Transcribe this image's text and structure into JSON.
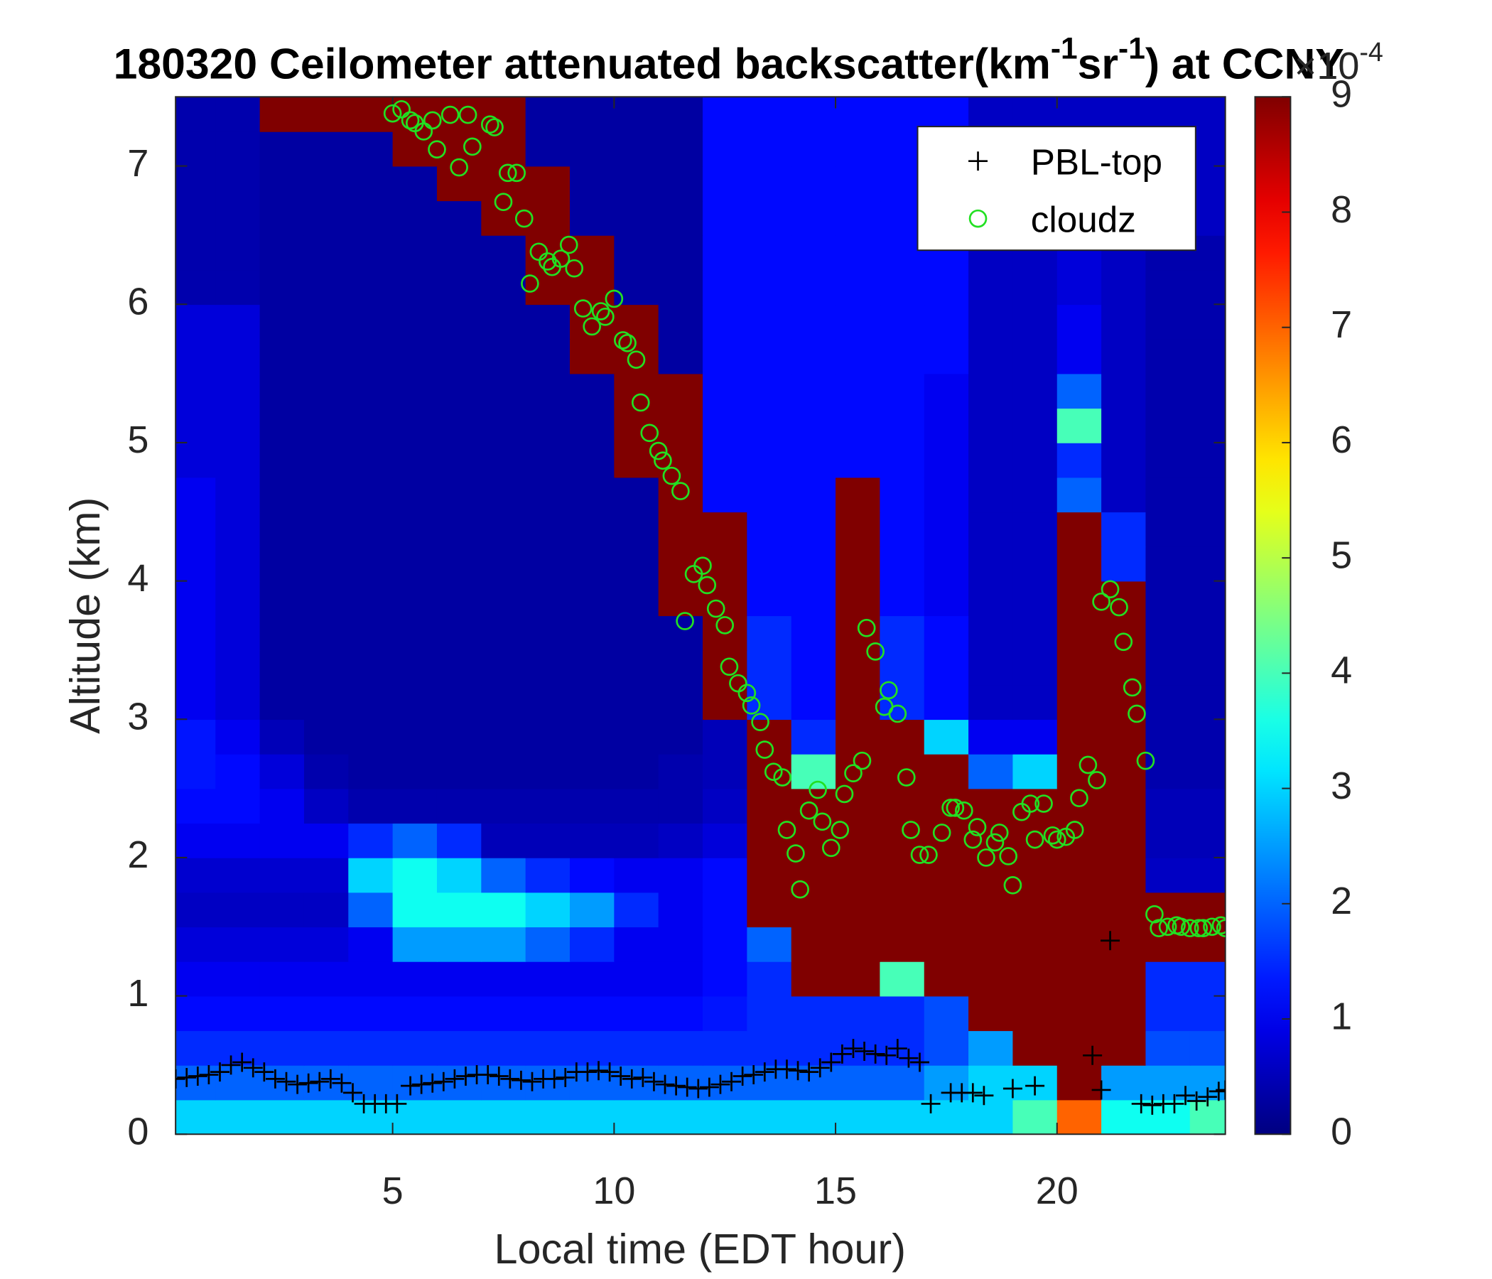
{
  "chart_data": {
    "type": "heatmap",
    "title": [
      "180320 Ceilometer attenuated backscatter(km",
      "-1",
      "sr",
      "-1",
      ") at CCNY"
    ],
    "xlabel": "Local time (EDT hour)",
    "ylabel": "Altitude (km)",
    "colormap": "jet",
    "colorbar_label": [
      "×10",
      "-4"
    ],
    "clim": [
      0,
      9
    ],
    "cticks": [
      0,
      1,
      2,
      3,
      4,
      5,
      6,
      7,
      8,
      9
    ],
    "xlim": [
      0.1,
      23.8
    ],
    "ylim": [
      0,
      7.5
    ],
    "xticks": [
      5,
      10,
      15,
      20
    ],
    "yticks": [
      0,
      1,
      2,
      3,
      4,
      5,
      6,
      7
    ],
    "legend": "upper right",
    "x": [
      0.5,
      1.5,
      2.5,
      3.5,
      4.5,
      5.5,
      6.5,
      7.5,
      8.5,
      9.5,
      10.5,
      11.5,
      12.5,
      13.5,
      14.5,
      15.5,
      16.5,
      17.5,
      18.5,
      19.5,
      20.5,
      21.5,
      22.5,
      23.5
    ],
    "y": [
      0.125,
      0.375,
      0.625,
      0.875,
      1.125,
      1.375,
      1.625,
      1.875,
      2.125,
      2.375,
      2.625,
      2.875,
      3.125,
      3.375,
      3.625,
      3.875,
      4.125,
      4.375,
      4.625,
      4.875,
      5.125,
      5.375,
      5.625,
      5.875,
      6.125,
      6.375,
      6.625,
      6.875,
      7.125,
      7.375
    ],
    "z": [
      [
        3,
        3,
        3,
        3,
        3,
        3,
        3,
        3,
        3,
        3,
        3,
        3,
        3,
        3,
        3,
        3,
        3,
        3,
        3,
        4,
        7,
        3.5,
        3.5,
        4
      ],
      [
        2,
        2,
        2,
        2,
        2,
        2,
        2,
        2,
        2,
        2,
        2,
        2,
        2,
        2,
        2,
        2,
        2,
        2.5,
        3,
        3,
        9,
        2.5,
        2.5,
        2.5
      ],
      [
        1.5,
        1.5,
        1.5,
        1.5,
        1.5,
        1.5,
        1.5,
        1.5,
        1.5,
        1.5,
        1.5,
        1.5,
        1.5,
        1.5,
        1.5,
        1.5,
        1.5,
        1.8,
        2.5,
        9,
        9,
        9,
        1.8,
        1.8
      ],
      [
        1.2,
        1.2,
        1.2,
        1.2,
        1.2,
        1.2,
        1.2,
        1.2,
        1.2,
        1.2,
        1.2,
        1.2,
        1.3,
        1.5,
        1.5,
        1.5,
        1.5,
        1.8,
        9,
        9,
        9,
        9,
        1.5,
        1.5
      ],
      [
        1,
        1,
        1,
        1,
        1,
        1,
        1,
        1,
        1,
        1,
        1,
        1,
        1.2,
        1.5,
        9,
        9,
        4,
        9,
        9,
        9,
        9,
        9,
        1.5,
        1.5
      ],
      [
        0.8,
        0.8,
        0.8,
        0.8,
        1,
        2.5,
        2.5,
        2.5,
        2,
        1.5,
        1,
        1,
        1.2,
        2,
        9,
        9,
        9,
        9,
        9,
        9,
        9,
        9,
        9,
        9
      ],
      [
        0.6,
        0.6,
        0.6,
        0.6,
        2,
        3.5,
        3.5,
        3.5,
        3,
        2.5,
        1.5,
        1,
        1.2,
        9,
        9,
        9,
        9,
        9,
        9,
        9,
        9,
        9,
        9,
        9
      ],
      [
        0.7,
        0.7,
        0.7,
        0.7,
        3,
        3.5,
        3,
        2,
        1.5,
        1.2,
        1,
        1,
        1.2,
        9,
        9,
        9,
        9,
        9,
        9,
        9,
        9,
        9,
        0.6,
        0.6
      ],
      [
        1,
        1,
        1,
        1,
        1.5,
        2,
        1.5,
        0.5,
        0.5,
        0.5,
        0.5,
        0.6,
        0.8,
        9,
        9,
        9,
        9,
        9,
        9,
        9,
        9,
        9,
        0.5,
        0.5
      ],
      [
        1.2,
        1.2,
        1,
        0.6,
        0.4,
        0.4,
        0.4,
        0.4,
        0.4,
        0.4,
        0.4,
        0.4,
        0.6,
        9,
        9,
        9,
        9,
        9,
        9,
        9,
        9,
        9,
        0.5,
        0.5
      ],
      [
        1.3,
        1.2,
        0.8,
        0.4,
        0.3,
        0.3,
        0.3,
        0.3,
        0.3,
        0.3,
        0.3,
        0.4,
        0.5,
        9,
        4,
        9,
        9,
        9,
        2,
        3,
        9,
        9,
        0.4,
        0.4
      ],
      [
        1.3,
        1,
        0.5,
        0.3,
        0.3,
        0.3,
        0.3,
        0.3,
        0.3,
        0.3,
        0.3,
        0.3,
        0.5,
        9,
        1.5,
        9,
        9,
        3,
        1,
        1,
        9,
        9,
        0.4,
        0.4
      ],
      [
        1,
        0.8,
        0.3,
        0.3,
        0.3,
        0.3,
        0.3,
        0.3,
        0.3,
        0.3,
        0.3,
        0.3,
        9,
        1.5,
        1.2,
        9,
        1.5,
        1.2,
        0.6,
        0.6,
        9,
        9,
        0.4,
        0.4
      ],
      [
        1,
        0.8,
        0.3,
        0.3,
        0.3,
        0.3,
        0.3,
        0.3,
        0.3,
        0.3,
        0.3,
        0.3,
        9,
        1.5,
        1.2,
        9,
        1.5,
        1.2,
        0.6,
        0.6,
        9,
        9,
        0.4,
        0.4
      ],
      [
        1,
        0.8,
        0.3,
        0.3,
        0.3,
        0.3,
        0.3,
        0.3,
        0.3,
        0.3,
        0.3,
        0.3,
        9,
        1.5,
        1.2,
        9,
        1.5,
        1.2,
        0.6,
        0.6,
        9,
        9,
        0.4,
        0.4
      ],
      [
        1,
        0.8,
        0.3,
        0.3,
        0.3,
        0.3,
        0.3,
        0.3,
        0.3,
        0.3,
        0.3,
        9,
        9,
        1.2,
        1.2,
        9,
        1.2,
        1,
        0.6,
        0.6,
        9,
        9,
        0.4,
        0.4
      ],
      [
        1,
        0.8,
        0.3,
        0.3,
        0.3,
        0.3,
        0.3,
        0.3,
        0.3,
        0.3,
        0.3,
        9,
        9,
        1.2,
        1.2,
        9,
        1.2,
        1,
        0.6,
        0.6,
        9,
        1.5,
        0.4,
        0.4
      ],
      [
        1,
        0.8,
        0.3,
        0.3,
        0.3,
        0.3,
        0.3,
        0.3,
        0.3,
        0.3,
        0.3,
        9,
        9,
        1.2,
        1.2,
        9,
        1.2,
        1,
        0.6,
        0.6,
        9,
        1.5,
        0.4,
        0.4
      ],
      [
        1,
        0.8,
        0.3,
        0.3,
        0.3,
        0.3,
        0.3,
        0.3,
        0.3,
        0.3,
        0.3,
        9,
        1.2,
        1.2,
        1.2,
        9,
        1.2,
        1,
        0.6,
        0.6,
        2,
        0.6,
        0.4,
        0.4
      ],
      [
        0.8,
        0.8,
        0.3,
        0.3,
        0.3,
        0.3,
        0.3,
        0.3,
        0.3,
        0.3,
        9,
        9,
        1.2,
        1.2,
        1.2,
        1.2,
        1.2,
        1,
        0.6,
        0.6,
        1.5,
        0.6,
        0.4,
        0.4
      ],
      [
        0.8,
        0.8,
        0.3,
        0.3,
        0.3,
        0.3,
        0.3,
        0.3,
        0.3,
        0.3,
        9,
        9,
        1.2,
        1.2,
        1.2,
        1.2,
        1.2,
        1,
        0.6,
        0.6,
        4,
        0.6,
        0.4,
        0.4
      ],
      [
        0.8,
        0.8,
        0.3,
        0.3,
        0.3,
        0.3,
        0.3,
        0.3,
        0.3,
        0.3,
        9,
        9,
        1.2,
        1.2,
        1.2,
        1.2,
        1.2,
        1,
        0.6,
        0.6,
        2,
        0.6,
        0.4,
        0.4
      ],
      [
        0.8,
        0.8,
        0.3,
        0.3,
        0.3,
        0.3,
        0.3,
        0.3,
        0.3,
        9,
        9,
        0.3,
        1.2,
        1.2,
        1.2,
        1.2,
        1.2,
        1.2,
        0.6,
        0.6,
        1,
        0.6,
        0.4,
        0.4
      ],
      [
        0.8,
        0.8,
        0.3,
        0.3,
        0.3,
        0.3,
        0.3,
        0.3,
        0.3,
        9,
        9,
        0.3,
        1.2,
        1.2,
        1.2,
        1.2,
        1.2,
        1.2,
        0.6,
        0.6,
        1,
        0.6,
        0.4,
        0.4
      ],
      [
        0.4,
        0.4,
        0.3,
        0.3,
        0.3,
        0.3,
        0.3,
        0.3,
        9,
        9,
        0.3,
        0.3,
        1.2,
        1.2,
        1.2,
        1.2,
        1.2,
        1.2,
        0.6,
        0.6,
        0.8,
        0.6,
        0.4,
        0.4
      ],
      [
        0.4,
        0.4,
        0.3,
        0.3,
        0.3,
        0.3,
        0.3,
        0.3,
        9,
        9,
        0.3,
        0.3,
        1.2,
        1.2,
        1.2,
        1.2,
        1.2,
        1.2,
        0.6,
        0.6,
        0.8,
        0.6,
        0.4,
        0.4
      ],
      [
        0.4,
        0.4,
        0.3,
        0.3,
        0.3,
        0.3,
        0.3,
        9,
        9,
        0.3,
        0.3,
        0.3,
        1.2,
        1.2,
        1.2,
        1.2,
        1.2,
        1.2,
        0.6,
        0.6,
        0.6,
        0.6,
        0.6,
        0.6
      ],
      [
        0.4,
        0.4,
        0.3,
        0.3,
        0.3,
        0.3,
        9,
        9,
        9,
        0.3,
        0.3,
        0.3,
        1.2,
        1.2,
        1.2,
        1.2,
        1.2,
        1.2,
        0.6,
        0.6,
        0.6,
        0.6,
        0.6,
        0.6
      ],
      [
        0.4,
        0.4,
        0.3,
        0.3,
        0.3,
        9,
        9,
        9,
        0.3,
        0.3,
        0.3,
        0.3,
        1.2,
        1.2,
        1.2,
        1.2,
        1.2,
        1.2,
        0.6,
        0.6,
        0.6,
        0.6,
        0.6,
        0.6
      ],
      [
        0.4,
        0.4,
        9,
        9,
        9,
        9,
        9,
        9,
        0.3,
        0.3,
        0.3,
        0.3,
        1.2,
        1.2,
        1.2,
        1.2,
        1.2,
        1.2,
        0.6,
        0.6,
        0.6,
        0.6,
        0.6,
        0.6
      ]
    ],
    "series": [
      {
        "name": "PBL-top",
        "type": "scatter",
        "marker": "+",
        "color": "#000000",
        "x": [
          0.1,
          0.35,
          0.6,
          0.85,
          1.1,
          1.35,
          1.6,
          1.85,
          2.1,
          2.35,
          2.6,
          2.85,
          3.1,
          3.35,
          3.6,
          3.85,
          4.1,
          4.35,
          4.6,
          4.85,
          5.1,
          5.4,
          5.65,
          5.9,
          6.15,
          6.4,
          6.65,
          6.9,
          7.15,
          7.4,
          7.65,
          7.9,
          8.15,
          8.4,
          8.65,
          8.9,
          9.15,
          9.4,
          9.65,
          9.9,
          10.15,
          10.4,
          10.65,
          10.9,
          11.15,
          11.4,
          11.65,
          11.9,
          12.15,
          12.4,
          12.65,
          12.9,
          13.15,
          13.4,
          13.65,
          13.9,
          14.15,
          14.4,
          14.65,
          14.9,
          15.15,
          15.4,
          15.65,
          15.9,
          16.15,
          16.4,
          16.65,
          16.9,
          17.15,
          17.6,
          17.85,
          18.1,
          18.35,
          19.0,
          19.5,
          20.8,
          21.0,
          21.2,
          21.9,
          22.15,
          22.4,
          22.65,
          22.9,
          23.15,
          23.4,
          23.65,
          23.8
        ],
        "values": [
          0.4,
          0.41,
          0.42,
          0.43,
          0.45,
          0.5,
          0.52,
          0.48,
          0.45,
          0.4,
          0.38,
          0.36,
          0.37,
          0.38,
          0.4,
          0.37,
          0.3,
          0.22,
          0.22,
          0.22,
          0.22,
          0.35,
          0.36,
          0.37,
          0.38,
          0.4,
          0.42,
          0.43,
          0.43,
          0.42,
          0.4,
          0.39,
          0.38,
          0.4,
          0.4,
          0.41,
          0.45,
          0.45,
          0.46,
          0.45,
          0.42,
          0.4,
          0.41,
          0.38,
          0.36,
          0.35,
          0.34,
          0.33,
          0.34,
          0.36,
          0.38,
          0.42,
          0.43,
          0.45,
          0.47,
          0.47,
          0.46,
          0.45,
          0.48,
          0.52,
          0.58,
          0.62,
          0.6,
          0.58,
          0.57,
          0.62,
          0.55,
          0.52,
          0.22,
          0.3,
          0.3,
          0.3,
          0.28,
          0.33,
          0.35,
          0.57,
          0.32,
          1.4,
          0.22,
          0.21,
          0.22,
          0.22,
          0.28,
          0.24,
          0.27,
          0.31,
          0.32
        ]
      },
      {
        "name": "cloudz",
        "type": "scatter",
        "marker": "o",
        "color": "#22e022",
        "x": [
          5.0,
          5.2,
          5.4,
          5.5,
          5.7,
          5.9,
          6.0,
          6.3,
          6.5,
          6.7,
          6.8,
          7.2,
          7.3,
          7.5,
          7.6,
          7.8,
          7.97,
          8.1,
          8.3,
          8.5,
          8.6,
          8.8,
          8.98,
          9.1,
          9.3,
          9.5,
          9.7,
          9.8,
          10.0,
          10.2,
          10.3,
          10.5,
          10.6,
          10.8,
          11.0,
          11.1,
          11.3,
          11.5,
          11.6,
          11.8,
          12.0,
          12.1,
          12.3,
          12.5,
          12.6,
          12.8,
          13.0,
          13.1,
          13.3,
          13.4,
          13.6,
          13.8,
          13.9,
          14.1,
          14.2,
          14.4,
          14.6,
          14.7,
          14.9,
          15.1,
          15.2,
          15.4,
          15.6,
          15.7,
          15.9,
          16.1,
          16.2,
          16.4,
          16.6,
          16.7,
          16.9,
          17.1,
          17.4,
          17.6,
          17.7,
          17.9,
          18.1,
          18.2,
          18.4,
          18.6,
          18.7,
          18.9,
          19.0,
          19.2,
          19.4,
          19.5,
          19.7,
          19.9,
          20.0,
          20.2,
          20.4,
          20.5,
          20.7,
          20.9,
          21.0,
          21.2,
          21.4,
          21.5,
          21.7,
          21.8,
          22.0,
          22.2,
          22.3,
          22.5,
          22.7,
          22.8,
          23.0,
          23.2,
          23.3,
          23.5,
          23.7,
          23.8
        ],
        "values": [
          7.38,
          7.41,
          7.33,
          7.31,
          7.25,
          7.33,
          7.12,
          7.37,
          6.99,
          7.37,
          7.14,
          7.3,
          7.28,
          6.74,
          6.95,
          6.95,
          6.62,
          6.15,
          6.38,
          6.31,
          6.27,
          6.33,
          6.43,
          6.26,
          5.97,
          5.84,
          5.95,
          5.91,
          6.04,
          5.74,
          5.72,
          5.6,
          5.29,
          5.07,
          4.94,
          4.87,
          4.76,
          4.65,
          3.71,
          4.05,
          4.11,
          3.97,
          3.8,
          3.68,
          3.38,
          3.26,
          3.19,
          3.1,
          2.98,
          2.78,
          2.62,
          2.58,
          2.2,
          2.03,
          1.77,
          2.34,
          2.49,
          2.26,
          2.07,
          2.2,
          2.46,
          2.61,
          2.7,
          3.66,
          3.49,
          3.09,
          3.21,
          3.04,
          2.58,
          2.2,
          2.02,
          2.02,
          2.18,
          2.36,
          2.36,
          2.34,
          2.13,
          2.22,
          2.0,
          2.11,
          2.18,
          2.01,
          1.8,
          2.33,
          2.39,
          2.13,
          2.39,
          2.16,
          2.13,
          2.15,
          2.2,
          2.43,
          2.67,
          2.56,
          3.85,
          3.94,
          3.81,
          3.56,
          3.23,
          3.04,
          2.7,
          1.59,
          1.49,
          1.5,
          1.51,
          1.5,
          1.49,
          1.49,
          1.49,
          1.5,
          1.51,
          1.49
        ]
      }
    ]
  }
}
